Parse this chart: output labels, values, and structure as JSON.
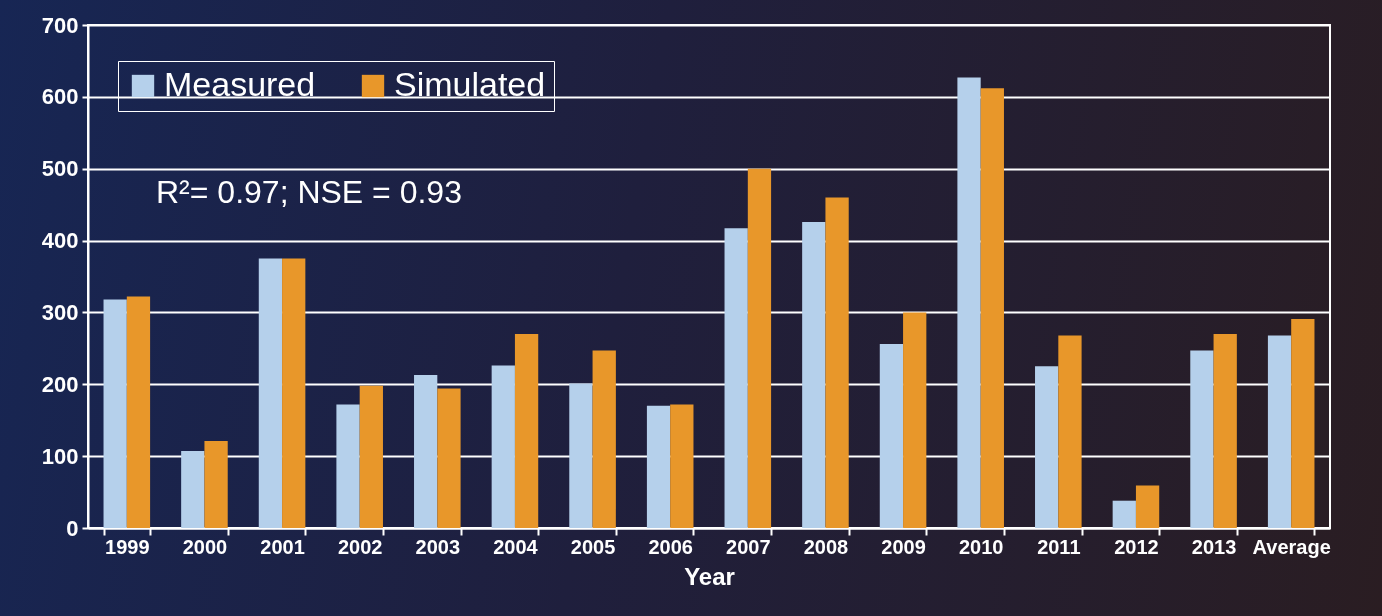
{
  "chart_data": {
    "type": "bar",
    "xlabel": "Year",
    "categories": [
      "1999",
      "2000",
      "2001",
      "2002",
      "2003",
      "2004",
      "2005",
      "2006",
      "2007",
      "2008",
      "2009",
      "2010",
      "2011",
      "2012",
      "2013",
      "Average"
    ],
    "series": [
      {
        "name": "Measured",
        "color": "#b5d0eb",
        "values": [
          318,
          107,
          375,
          172,
          213,
          226,
          201,
          170,
          417,
          426,
          256,
          627,
          225,
          38,
          247,
          268
        ]
      },
      {
        "name": "Simulated",
        "color": "#e8972a",
        "values": [
          322,
          121,
          375,
          198,
          194,
          270,
          247,
          172,
          500,
          460,
          300,
          612,
          268,
          59,
          270,
          291
        ]
      }
    ],
    "ylim": [
      0,
      700
    ],
    "yticks": [
      0,
      100,
      200,
      300,
      400,
      500,
      600,
      700
    ],
    "grid": "y",
    "legend": "top left",
    "annotations": [
      "R²= 0.97;  NSE = 0.93"
    ]
  }
}
